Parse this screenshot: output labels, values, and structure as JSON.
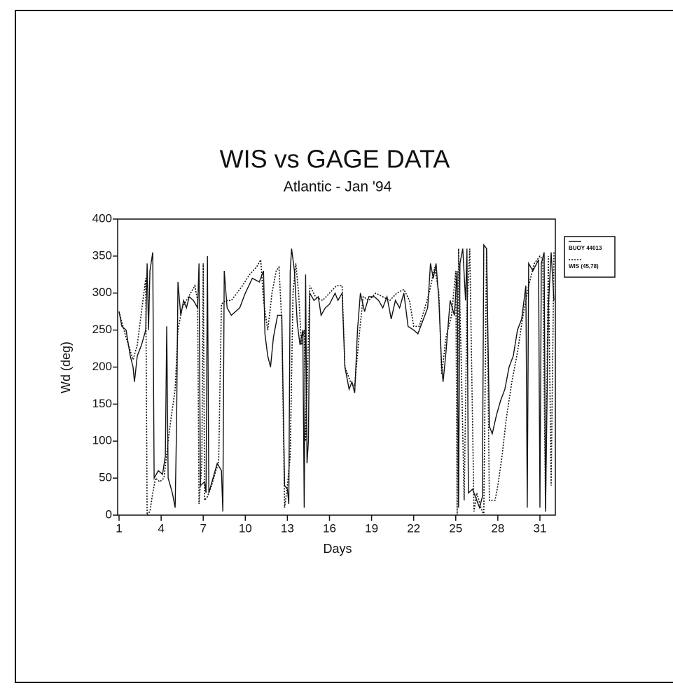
{
  "chart_data": {
    "type": "line",
    "title": "WIS vs GAGE DATA",
    "subtitle": "Atlantic - Jan '94",
    "x_label": "Days",
    "y_label": "Wd (deg)",
    "xlim": [
      0.9,
      32.1
    ],
    "ylim": [
      0,
      400
    ],
    "xticks": [
      1,
      4,
      7,
      10,
      13,
      16,
      19,
      22,
      25,
      28,
      31
    ],
    "yticks": [
      0,
      50,
      100,
      150,
      200,
      250,
      300,
      350,
      400
    ],
    "series": [
      {
        "name": "BUOY 44013",
        "color": "#111111",
        "style": "solid",
        "x": [
          1,
          1.2,
          1.5,
          1.8,
          2.0,
          2.1,
          2.3,
          2.6,
          2.9,
          3.0,
          3.1,
          3.2,
          3.4,
          3.5,
          3.8,
          4.1,
          4.3,
          4.4,
          4.5,
          4.8,
          5.0,
          5.1,
          5.2,
          5.4,
          5.6,
          5.8,
          6.0,
          6.3,
          6.6,
          6.7,
          6.8,
          7.1,
          7.2,
          7.3,
          7.4,
          7.7,
          8.0,
          8.3,
          8.4,
          8.5,
          8.7,
          9.0,
          9.3,
          9.6,
          10.0,
          10.5,
          11.0,
          11.3,
          11.4,
          11.6,
          11.8,
          12.0,
          12.3,
          12.6,
          12.8,
          13.0,
          13.1,
          13.2,
          13.3,
          13.5,
          13.7,
          13.9,
          14.1,
          14.2,
          14.3,
          14.4,
          14.5,
          14.6,
          14.9,
          15.2,
          15.4,
          15.7,
          16.0,
          16.4,
          16.6,
          16.9,
          17.1,
          17.4,
          17.6,
          17.8,
          18.0,
          18.2,
          18.5,
          18.8,
          19.2,
          19.5,
          19.8,
          20.1,
          20.4,
          20.7,
          21.0,
          21.3,
          21.6,
          22.0,
          22.3,
          22.7,
          23.0,
          23.2,
          23.4,
          23.6,
          23.8,
          24.0,
          24.1,
          24.3,
          24.6,
          24.9,
          25.1,
          25.2,
          25.3,
          25.5,
          25.7,
          25.8,
          25.9,
          26.2,
          26.5,
          26.7,
          26.9,
          27.0,
          27.2,
          27.4,
          27.6,
          27.9,
          28.2,
          28.5,
          28.8,
          29.1,
          29.4,
          29.7,
          30.0,
          30.1,
          30.2,
          30.5,
          30.9,
          31.0,
          31.1,
          31.3,
          31.4,
          31.6,
          31.8,
          32.0
        ],
        "values": [
          275,
          255,
          250,
          215,
          200,
          180,
          215,
          230,
          250,
          340,
          250,
          330,
          355,
          50,
          60,
          55,
          80,
          255,
          50,
          30,
          10,
          120,
          315,
          270,
          290,
          280,
          295,
          290,
          280,
          340,
          40,
          45,
          30,
          350,
          30,
          50,
          70,
          60,
          5,
          330,
          280,
          270,
          275,
          280,
          300,
          320,
          315,
          330,
          245,
          215,
          200,
          240,
          270,
          270,
          40,
          35,
          15,
          330,
          360,
          330,
          260,
          230,
          250,
          10,
          325,
          70,
          100,
          300,
          290,
          295,
          270,
          280,
          285,
          300,
          290,
          300,
          200,
          170,
          180,
          165,
          250,
          300,
          275,
          295,
          295,
          290,
          280,
          295,
          265,
          290,
          280,
          300,
          255,
          250,
          245,
          265,
          280,
          340,
          320,
          340,
          290,
          200,
          180,
          220,
          290,
          270,
          330,
          10,
          340,
          360,
          290,
          360,
          30,
          35,
          20,
          10,
          25,
          365,
          360,
          120,
          110,
          135,
          155,
          170,
          200,
          215,
          250,
          265,
          310,
          10,
          340,
          330,
          345,
          10,
          340,
          355,
          10,
          280,
          355,
          290
        ]
      },
      {
        "name": "WIS (45,78)",
        "color": "#111111",
        "style": "dotted",
        "x": [
          1,
          1.5,
          2.0,
          2.3,
          2.7,
          2.9,
          3.0,
          3.2,
          3.4,
          3.6,
          3.9,
          4.2,
          4.5,
          4.7,
          5.0,
          5.2,
          5.5,
          5.8,
          6.1,
          6.4,
          6.6,
          6.7,
          6.9,
          7.0,
          7.1,
          7.3,
          7.6,
          7.9,
          8.1,
          8.3,
          8.6,
          9.0,
          9.4,
          9.8,
          10.3,
          10.8,
          11.1,
          11.3,
          11.6,
          11.9,
          12.2,
          12.4,
          12.6,
          12.8,
          13.0,
          13.2,
          13.4,
          13.6,
          13.8,
          14.0,
          14.2,
          14.3,
          14.6,
          15.0,
          15.5,
          16.0,
          16.5,
          16.9,
          17.1,
          17.5,
          17.8,
          18.1,
          18.4,
          18.8,
          19.3,
          19.8,
          20.3,
          20.8,
          21.3,
          21.7,
          22.0,
          22.4,
          22.8,
          23.1,
          23.5,
          23.8,
          24.0,
          24.3,
          24.7,
          25.0,
          25.1,
          25.2,
          25.4,
          25.6,
          25.8,
          26.0,
          26.3,
          26.5,
          26.8,
          27.0,
          27.2,
          27.4,
          27.8,
          28.0,
          28.3,
          28.6,
          29.0,
          29.4,
          29.8,
          30.2,
          30.6,
          31.0,
          31.2,
          31.4,
          31.6,
          31.8,
          32.0
        ],
        "values": [
          275,
          240,
          210,
          230,
          290,
          320,
          0,
          5,
          30,
          50,
          45,
          50,
          100,
          130,
          170,
          250,
          280,
          290,
          300,
          310,
          290,
          15,
          70,
          340,
          20,
          25,
          40,
          60,
          70,
          285,
          290,
          290,
          300,
          310,
          325,
          335,
          345,
          290,
          250,
          300,
          330,
          335,
          260,
          10,
          40,
          80,
          300,
          340,
          300,
          230,
          250,
          100,
          310,
          295,
          290,
          300,
          310,
          310,
          200,
          180,
          175,
          240,
          295,
          290,
          300,
          295,
          290,
          300,
          305,
          290,
          255,
          255,
          280,
          300,
          335,
          300,
          190,
          240,
          270,
          330,
          0,
          360,
          200,
          20,
          280,
          360,
          5,
          30,
          10,
          0,
          360,
          20,
          20,
          40,
          80,
          130,
          180,
          220,
          270,
          310,
          340,
          350,
          345,
          5,
          350,
          40,
          355
        ]
      }
    ]
  }
}
